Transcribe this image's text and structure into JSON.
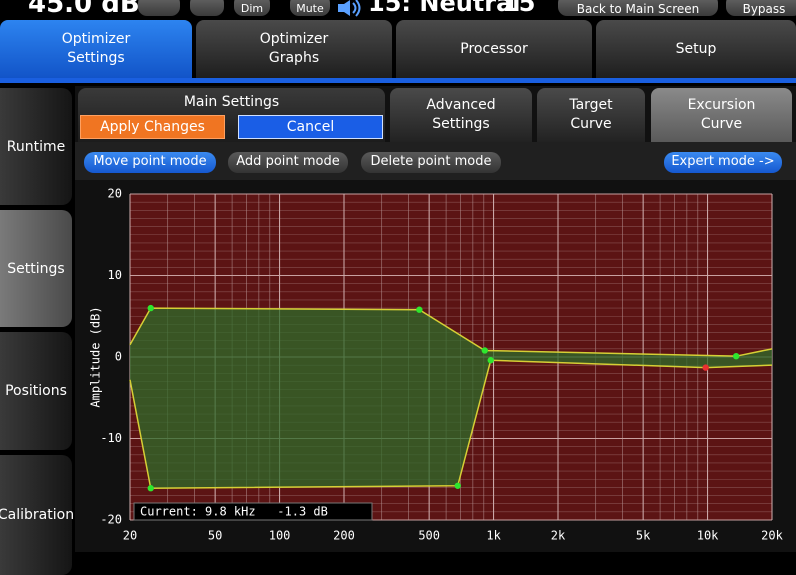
{
  "top_bar": {
    "level": "45.0 dB",
    "dim": "Dim",
    "mute": "Mute",
    "preset": "15: Neutral",
    "preset_number": "15",
    "back": "Back to Main Screen",
    "bypass": "Bypass"
  },
  "main_tabs": [
    {
      "label": "Optimizer\nSettings",
      "active": true
    },
    {
      "label": "Optimizer\nGraphs",
      "active": false
    },
    {
      "label": "Processor",
      "active": false
    },
    {
      "label": "Setup",
      "active": false
    }
  ],
  "side_tabs": [
    {
      "label": "Runtime",
      "active": false
    },
    {
      "label": "Settings",
      "active": true
    },
    {
      "label": "Positions",
      "active": false
    },
    {
      "label": "Calibration",
      "active": false
    }
  ],
  "main_settings": {
    "title": "Main Settings",
    "apply": "Apply Changes",
    "cancel": "Cancel"
  },
  "sub_tabs": [
    {
      "label": "Advanced\nSettings",
      "active": false
    },
    {
      "label": "Target\nCurve",
      "active": false
    },
    {
      "label": "Excursion\nCurve",
      "active": true
    }
  ],
  "modes": [
    {
      "label": "Move point mode",
      "active": true
    },
    {
      "label": "Add point mode",
      "active": false
    },
    {
      "label": "Delete point mode",
      "active": false
    }
  ],
  "expert": "Expert mode ->",
  "graph": {
    "type": "line",
    "y_label": "Amplitude (dB)",
    "annotation": "Current: 9.8 kHz   -1.3 dB",
    "log_x": true,
    "grid": true,
    "y_minor_step": 1,
    "background": "#5c1414",
    "fill_color": "#2d6b2a",
    "xlim": [
      20,
      20000
    ],
    "ylim": [
      -20,
      20
    ],
    "xticks": [
      20,
      50,
      100,
      200,
      500,
      {
        "value": 1000,
        "label": "1k"
      },
      {
        "value": 2000,
        "label": "2k"
      },
      {
        "value": 5000,
        "label": "5k"
      },
      {
        "value": 10000,
        "label": "10k"
      },
      {
        "value": 20000,
        "label": "20k"
      }
    ],
    "yticks": [
      -20,
      -10,
      0,
      10,
      20
    ],
    "series": [
      {
        "color": "#d6cf35",
        "x": [
          20,
          25,
          450,
          910,
          13600,
          20000
        ],
        "values": [
          1.5,
          6.0,
          5.8,
          0.8,
          0.1,
          1.0
        ],
        "marker_colors": [
          null,
          "#2ee62e",
          "#2ee62e",
          "#2ee62e",
          "#2ee62e",
          null
        ]
      },
      {
        "color": "#d6cf35",
        "x": [
          20,
          25,
          680,
          970,
          9800,
          20000
        ],
        "values": [
          -2.8,
          -16.1,
          -15.8,
          -0.4,
          -1.3,
          -1.0
        ],
        "marker_colors": [
          null,
          "#2ee62e",
          "#2ee62e",
          "#2ee62e",
          "#e83030",
          null
        ]
      }
    ]
  }
}
